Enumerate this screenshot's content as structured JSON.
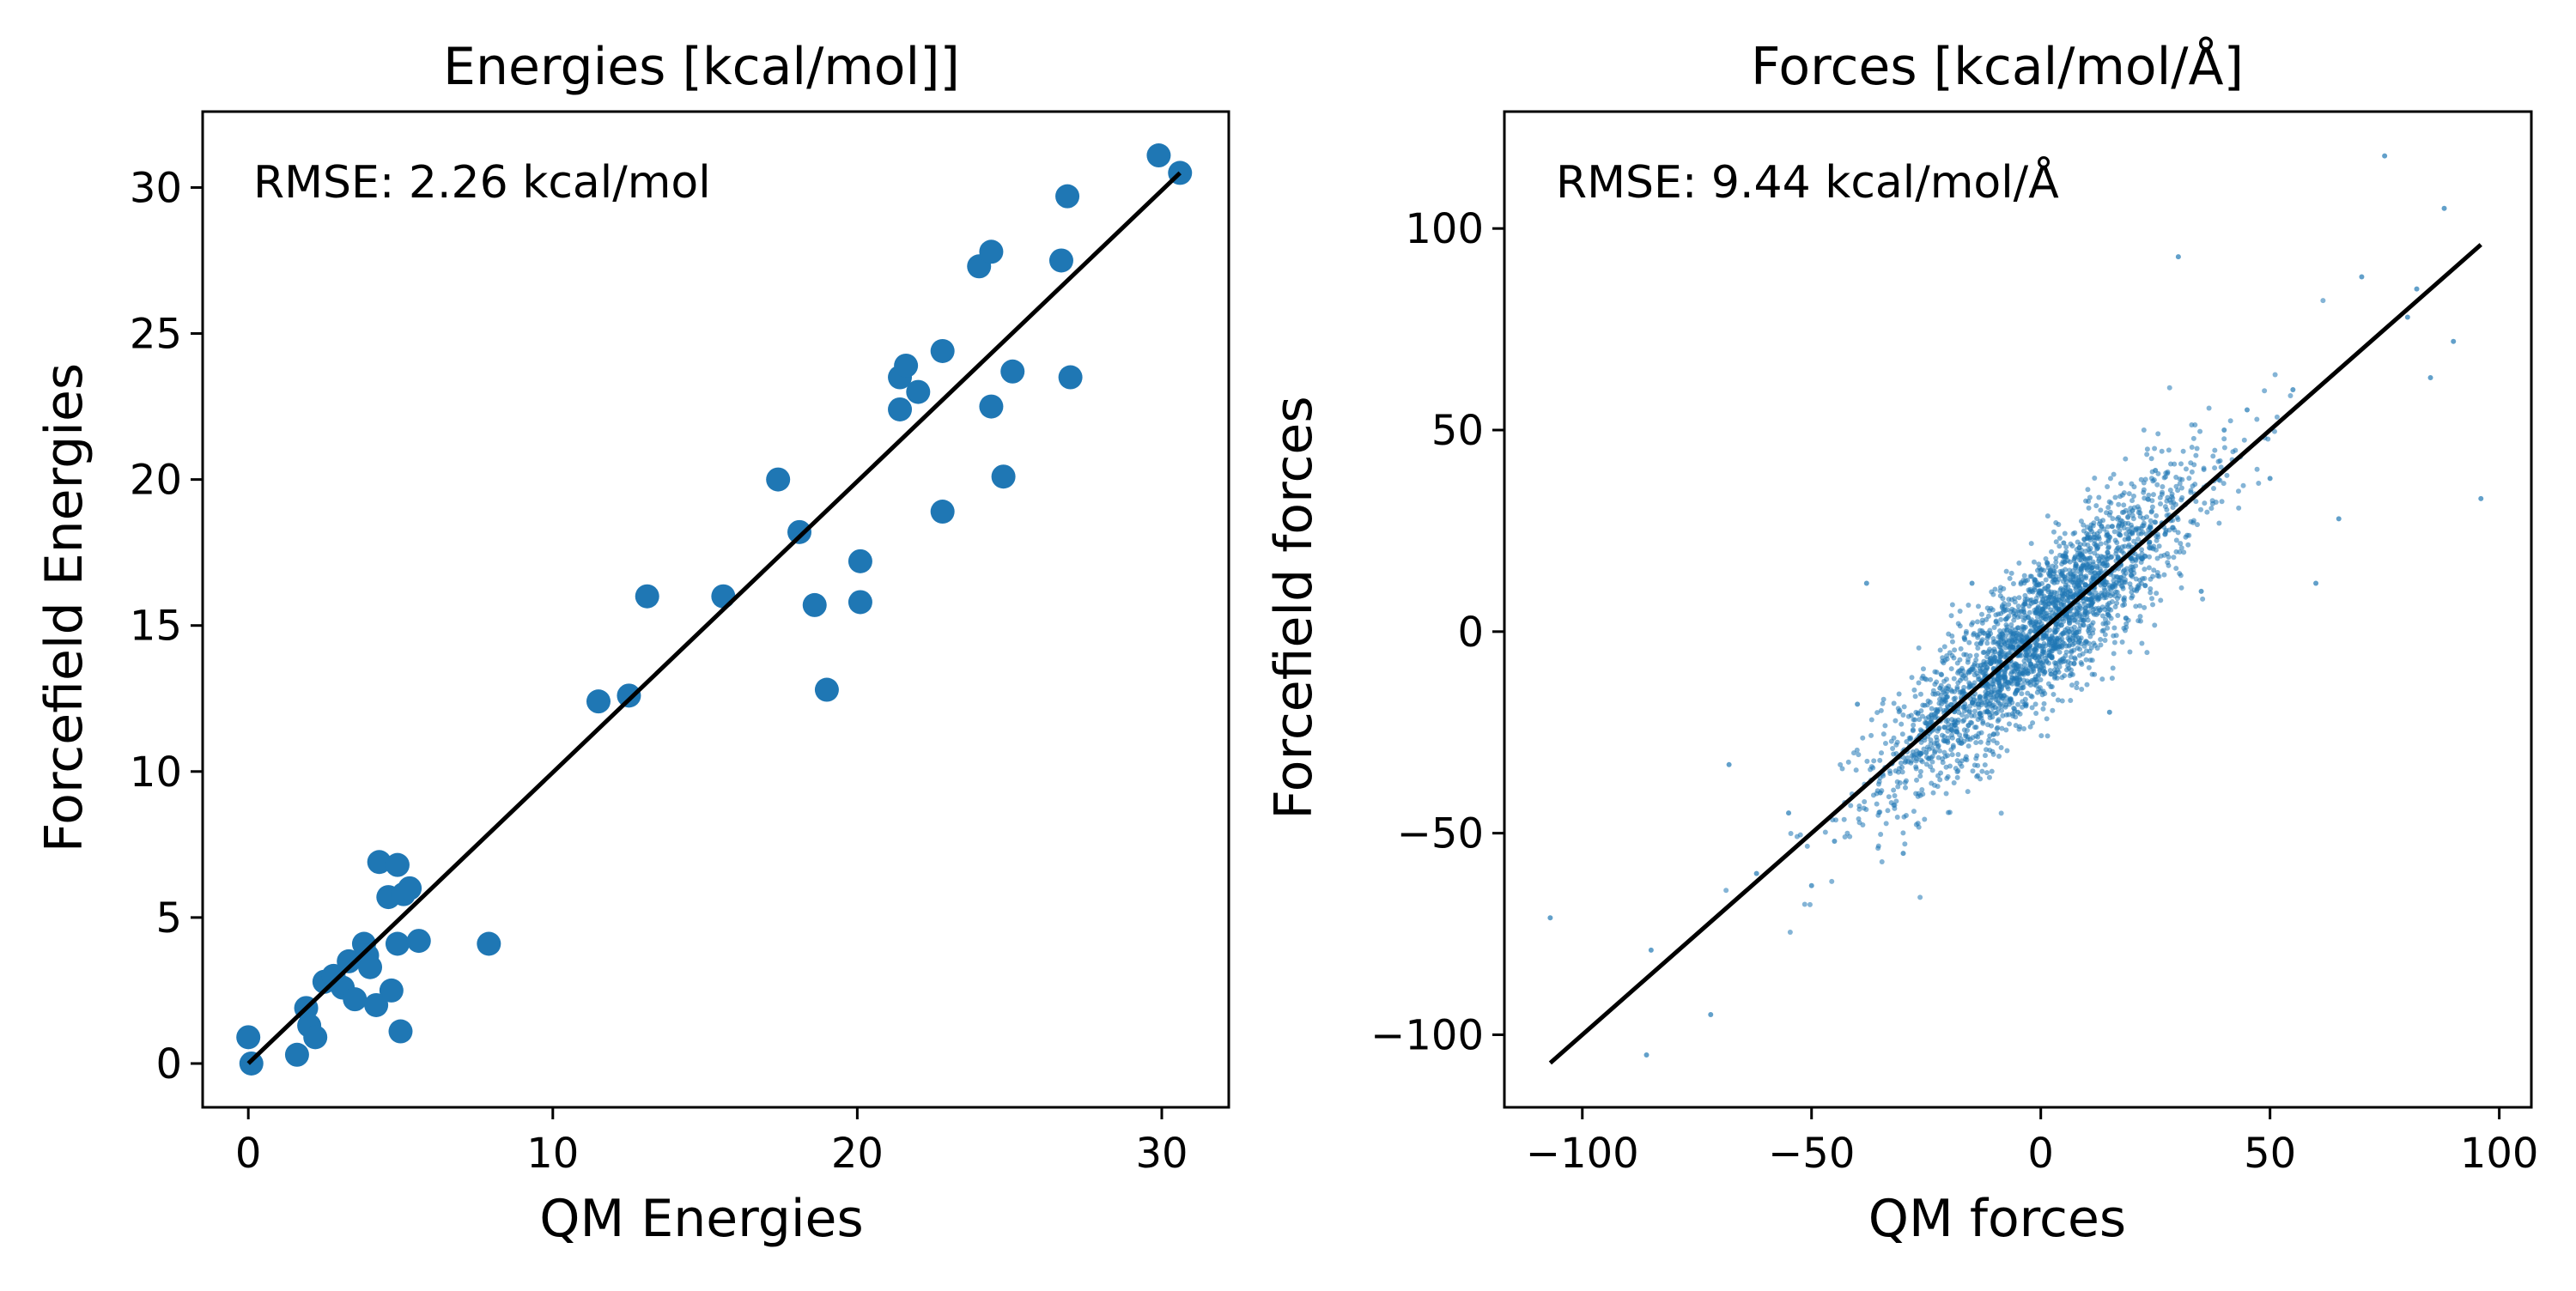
{
  "colors": {
    "points": "#1f77b4",
    "fit_line": "#000000",
    "axes": "#000000",
    "background": "#ffffff"
  },
  "chart_data": [
    {
      "type": "scatter",
      "title": "Energies [kcal/mol]]",
      "xlabel": "QM Energies",
      "ylabel": "Forcefield Energies",
      "annotation": "RMSE: 2.26 kcal/mol",
      "xlim": [
        -1.5,
        32.2
      ],
      "ylim": [
        -1.5,
        32.6
      ],
      "xticks": [
        0,
        10,
        20,
        30
      ],
      "xtick_labels": [
        "0",
        "10",
        "20",
        "30"
      ],
      "yticks": [
        0,
        5,
        10,
        15,
        20,
        25,
        30
      ],
      "ytick_labels": [
        "0",
        "5",
        "10",
        "15",
        "20",
        "25",
        "30"
      ],
      "grid": false,
      "marker": "large-dot",
      "fit_line": {
        "x": [
          0,
          30.6
        ],
        "y": [
          0,
          30.5
        ]
      },
      "series": [
        {
          "x": [
            0.0,
            0.1,
            1.6,
            1.9,
            2.0,
            2.2,
            2.5,
            2.8,
            3.1,
            3.3,
            3.5,
            3.8,
            3.9,
            4.0,
            4.2,
            4.3,
            4.6,
            4.7,
            4.9,
            4.9,
            5.0,
            5.1,
            5.3,
            5.6,
            7.9,
            11.5,
            12.5,
            13.1,
            15.6,
            17.4,
            18.1,
            18.6,
            19.0,
            20.1,
            20.1,
            21.4,
            21.4,
            21.6,
            22.0,
            22.8,
            22.8,
            24.0,
            24.4,
            24.4,
            24.8,
            25.1,
            26.7,
            26.9,
            27.0,
            29.9,
            30.6
          ],
          "y": [
            0.9,
            0.0,
            0.3,
            1.9,
            1.3,
            0.9,
            2.8,
            3.0,
            2.6,
            3.5,
            2.2,
            4.1,
            3.7,
            3.3,
            2.0,
            6.9,
            5.7,
            2.5,
            4.1,
            6.8,
            1.1,
            5.8,
            6.0,
            4.2,
            4.1,
            12.4,
            12.6,
            16.0,
            16.0,
            20.0,
            18.2,
            15.7,
            12.8,
            17.2,
            15.8,
            22.4,
            23.5,
            23.9,
            23.0,
            24.4,
            18.9,
            27.3,
            27.8,
            22.5,
            20.1,
            23.7,
            27.5,
            29.7,
            23.5,
            31.1,
            30.5
          ]
        }
      ]
    },
    {
      "type": "scatter",
      "title": "Forces [kcal/mol/Å]",
      "xlabel": "QM forces",
      "ylabel": "Forcefield forces",
      "annotation": "RMSE: 9.44 kcal/mol/Å",
      "xlim": [
        -117,
        107
      ],
      "ylim": [
        -118,
        129
      ],
      "xticks": [
        -100,
        -50,
        0,
        50,
        100
      ],
      "xtick_labels": [
        "−100",
        "−50",
        "0",
        "50",
        "100"
      ],
      "yticks": [
        -100,
        -50,
        0,
        50,
        100
      ],
      "ytick_labels": [
        "−100",
        "−50",
        "0",
        "50",
        "100"
      ],
      "grid": false,
      "marker": "small-dot",
      "fit_line": {
        "x": [
          -107,
          96
        ],
        "y": [
          -107,
          96
        ]
      },
      "rmse": 9.44,
      "series": [
        {
          "x": [
            -107,
            -86,
            -85,
            -72,
            -68,
            -62,
            -55,
            -50,
            -45,
            -40,
            -38,
            -35,
            -30,
            -25,
            -22,
            -18,
            -15,
            -10,
            -5,
            0,
            5,
            10,
            15,
            20,
            25,
            30,
            35,
            40,
            45,
            50,
            55,
            60,
            65,
            70,
            75,
            80,
            82,
            85,
            88,
            90,
            96
          ],
          "y": [
            -71,
            -105,
            -79,
            -95,
            -33,
            -60,
            -45,
            -63,
            -52,
            -18,
            12,
            -40,
            -55,
            -30,
            -14,
            -27,
            12,
            -5,
            -20,
            5,
            22,
            8,
            -20,
            30,
            40,
            93,
            10,
            50,
            55,
            38,
            60,
            12,
            28,
            88,
            118,
            78,
            85,
            63,
            105,
            72,
            33
          ]
        }
      ]
    }
  ]
}
